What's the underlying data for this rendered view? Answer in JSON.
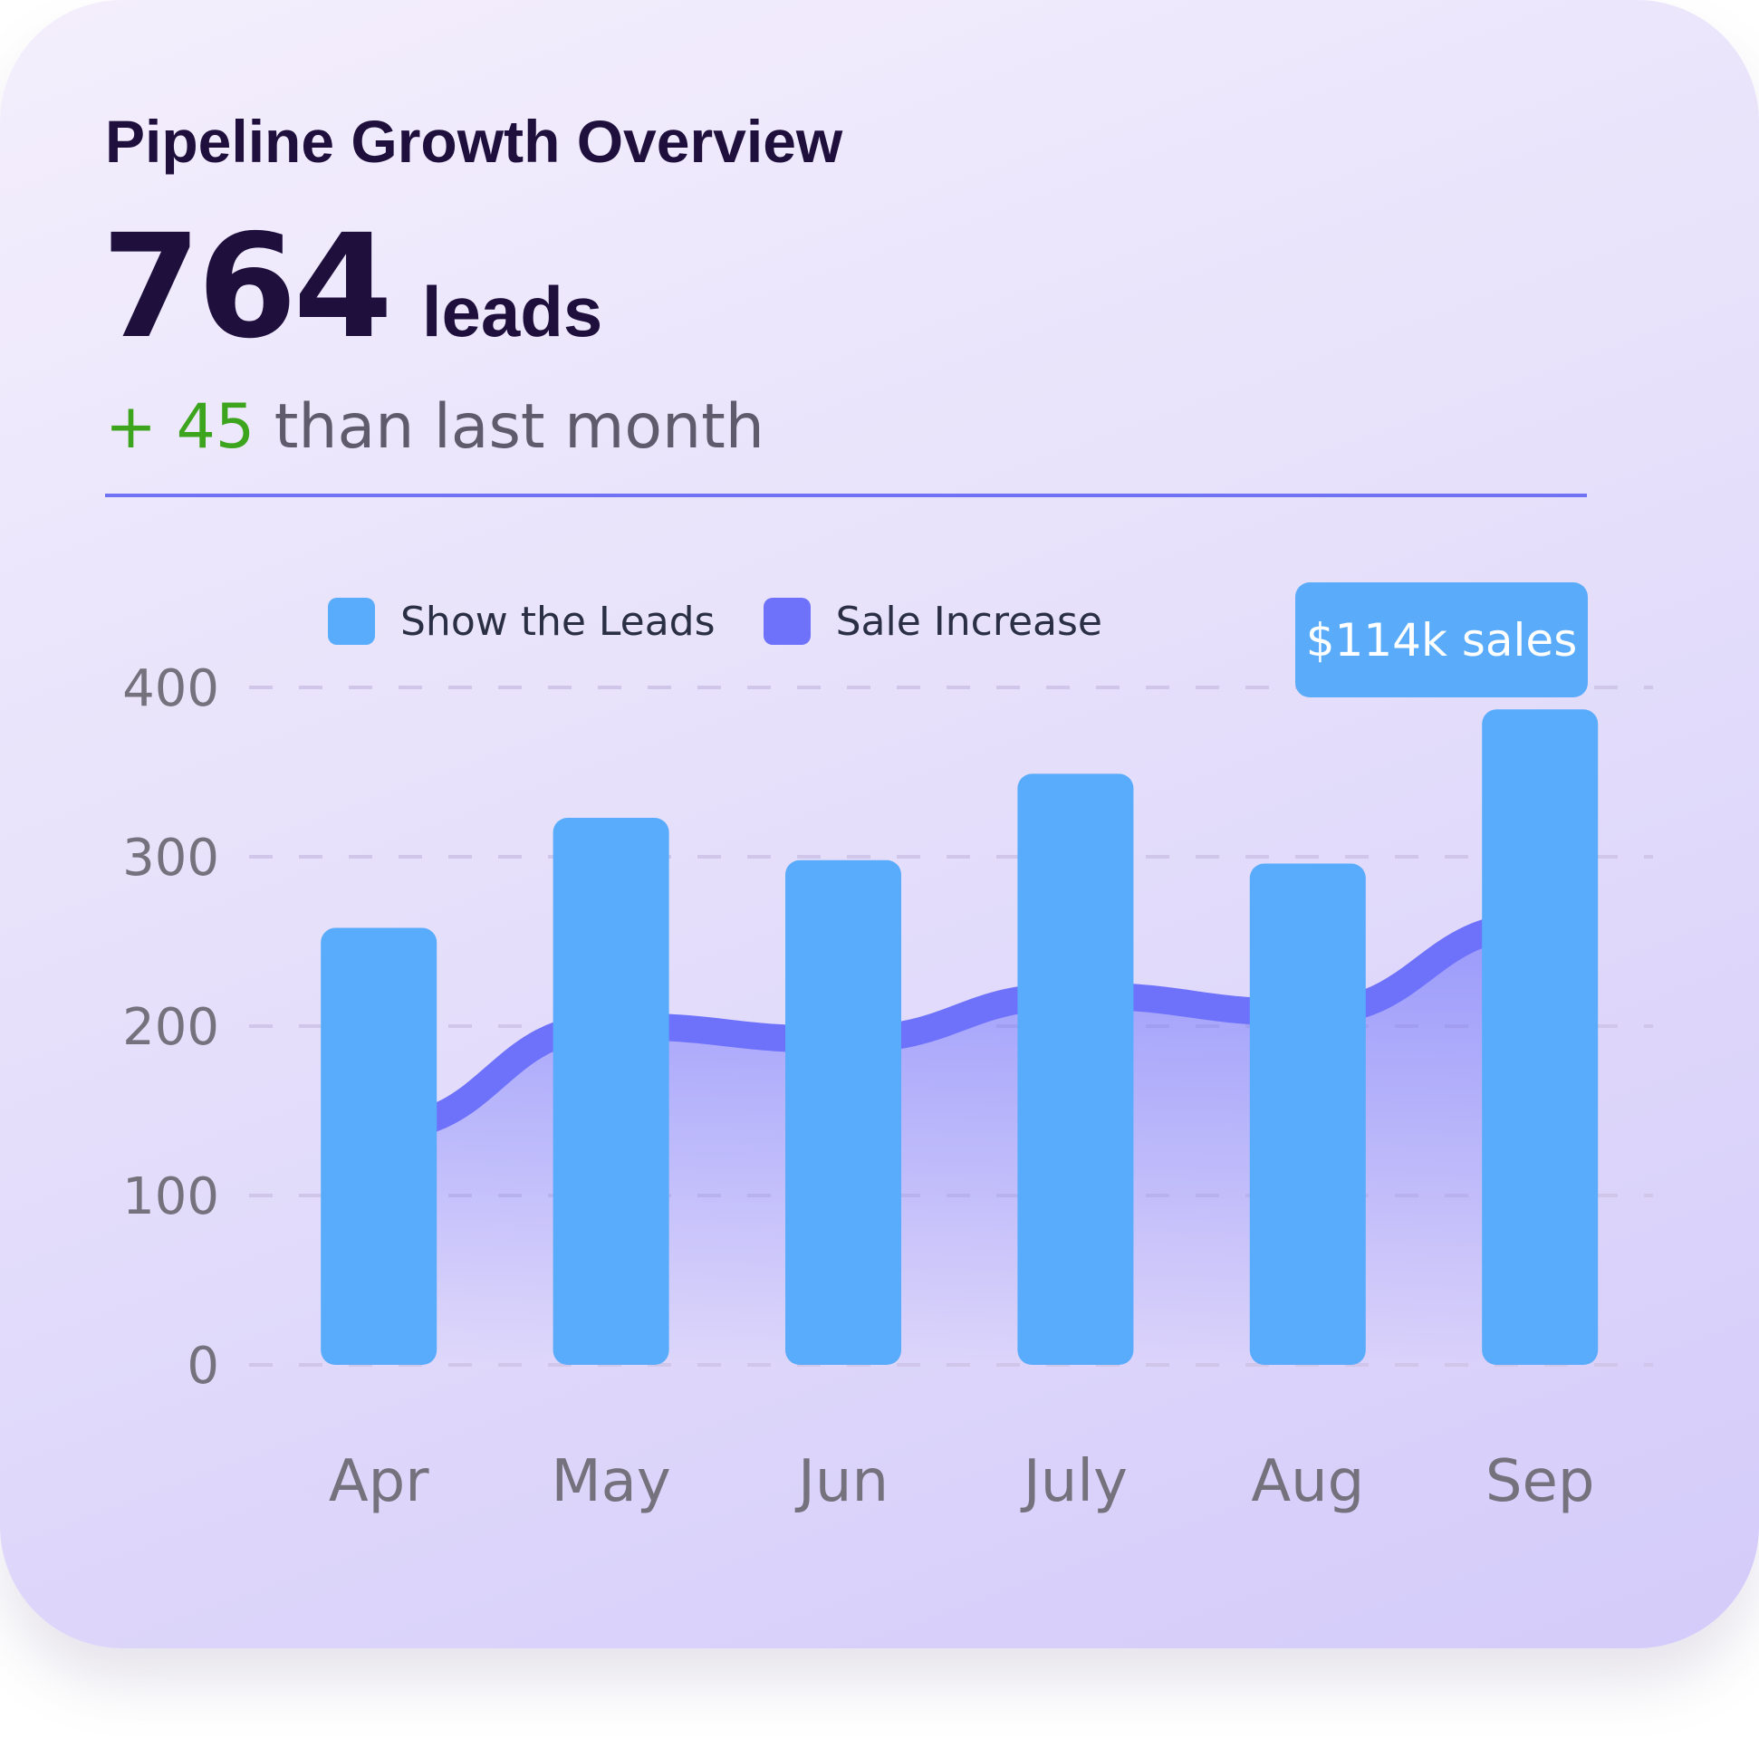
{
  "card": {
    "title": "Pipeline Growth Overview",
    "kpi_value": "764",
    "kpi_unit": "leads",
    "change_prefix": "+",
    "change_value": "45",
    "change_text": "than last month"
  },
  "badge": {
    "text": "$114k sales"
  },
  "colors": {
    "bars": "#58acfb",
    "line": "#6e72fb",
    "positive": "#3ca51d",
    "title": "#1f0f3d"
  },
  "chart_data": {
    "type": "bar",
    "categories": [
      "Apr",
      "May",
      "Jun",
      "July",
      "Aug",
      "Sep"
    ],
    "ylim": [
      0,
      400
    ],
    "yticks": [
      "400",
      "300",
      "200",
      "100",
      "0"
    ],
    "grid": true,
    "grid_style": "dashed",
    "legend_position": "top",
    "series": [
      {
        "name": "Show the Leads",
        "type": "bar",
        "color": "#58acfb",
        "values": [
          258,
          323,
          298,
          349,
          296,
          387
        ]
      },
      {
        "name": "Sale Increase",
        "type": "area",
        "color": "#6e72fb",
        "values": [
          140,
          200,
          192,
          218,
          208,
          260
        ]
      }
    ],
    "annotation": "$114k sales"
  }
}
